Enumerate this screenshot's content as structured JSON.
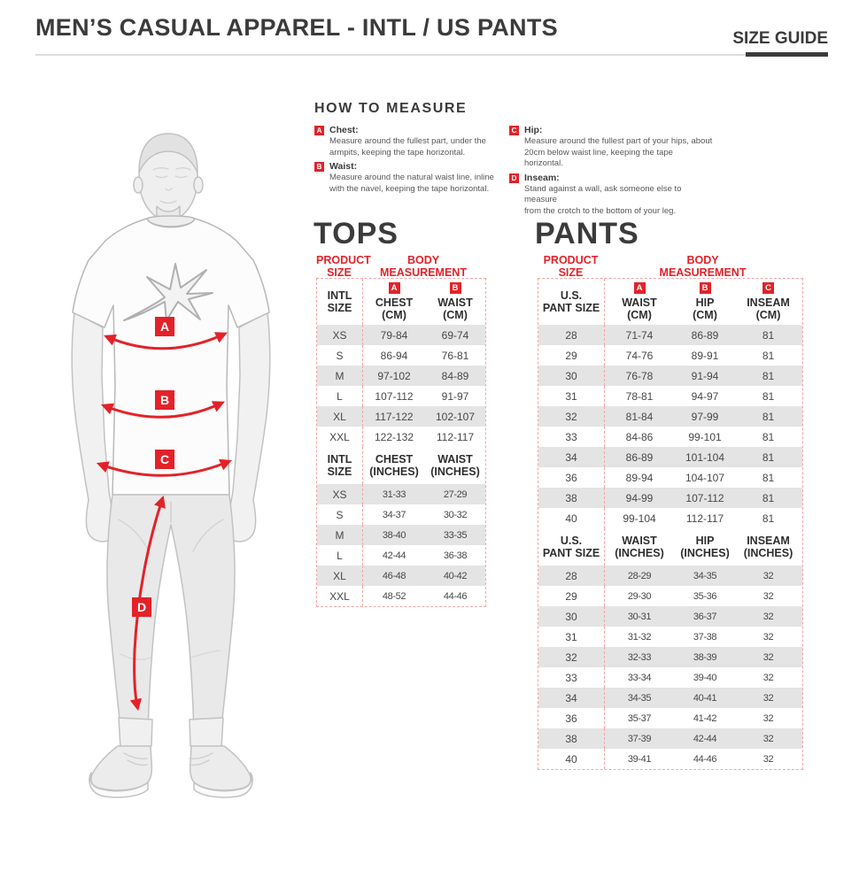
{
  "page": {
    "title": "MEN’S CASUAL APPAREL - INTL / US PANTS",
    "size_guide": "SIZE GUIDE"
  },
  "colors": {
    "accent_red": "#e32228",
    "table_border_dash": "#f0a7a4",
    "row_alt": "#e4e4e4",
    "heading_text": "#3b3b3b"
  },
  "how_to_measure": {
    "title": "HOW TO MEASURE",
    "items": [
      {
        "key": "A",
        "label": "Chest:",
        "text": "Measure around the fullest part, under the\narmpits, keeping the tape horizontal."
      },
      {
        "key": "B",
        "label": "Waist:",
        "text": "Measure around the natural waist line, inline\nwith the navel, keeping the tape horizontal."
      },
      {
        "key": "C",
        "label": "Hip:",
        "text": "Measure around the fullest part of your hips, about\n20cm below waist line, keeping the tape horizontal."
      },
      {
        "key": "D",
        "label": "Inseam:",
        "text": "Stand against a wall, ask someone else to measure\nfrom the crotch to the bottom of your leg."
      }
    ]
  },
  "figure": {
    "markers": [
      "A",
      "B",
      "C",
      "D"
    ]
  },
  "tops": {
    "title": "TOPS",
    "product_size_header": "PRODUCT\nSIZE",
    "body_measurement_header": "BODY\nMEASUREMENT",
    "cm": {
      "size_label": "INTL\nSIZE",
      "columns": [
        {
          "badge": "A",
          "label": "CHEST\n(CM)"
        },
        {
          "badge": "B",
          "label": "WAIST\n(CM)"
        }
      ],
      "rows": [
        {
          "size": "XS",
          "values": [
            "79-84",
            "69-74"
          ]
        },
        {
          "size": "S",
          "values": [
            "86-94",
            "76-81"
          ]
        },
        {
          "size": "M",
          "values": [
            "97-102",
            "84-89"
          ]
        },
        {
          "size": "L",
          "values": [
            "107-112",
            "91-97"
          ]
        },
        {
          "size": "XL",
          "values": [
            "117-122",
            "102-107"
          ]
        },
        {
          "size": "XXL",
          "values": [
            "122-132",
            "112-117"
          ]
        }
      ]
    },
    "inches": {
      "size_label": "INTL\nSIZE",
      "columns": [
        {
          "label": "CHEST\n(INCHES)"
        },
        {
          "label": "WAIST\n(INCHES)"
        }
      ],
      "rows": [
        {
          "size": "XS",
          "values": [
            "31-33",
            "27-29"
          ]
        },
        {
          "size": "S",
          "values": [
            "34-37",
            "30-32"
          ]
        },
        {
          "size": "M",
          "values": [
            "38-40",
            "33-35"
          ]
        },
        {
          "size": "L",
          "values": [
            "42-44",
            "36-38"
          ]
        },
        {
          "size": "XL",
          "values": [
            "46-48",
            "40-42"
          ]
        },
        {
          "size": "XXL",
          "values": [
            "48-52",
            "44-46"
          ]
        }
      ]
    }
  },
  "pants": {
    "title": "PANTS",
    "product_size_header": "PRODUCT\nSIZE",
    "body_measurement_header": "BODY\nMEASUREMENT",
    "cm": {
      "size_label": "U.S.\nPANT SIZE",
      "columns": [
        {
          "badge": "A",
          "label": "WAIST\n(CM)"
        },
        {
          "badge": "B",
          "label": "HIP\n(CM)"
        },
        {
          "badge": "C",
          "label": "INSEAM\n(CM)"
        }
      ],
      "rows": [
        {
          "size": "28",
          "values": [
            "71-74",
            "86-89",
            "81"
          ]
        },
        {
          "size": "29",
          "values": [
            "74-76",
            "89-91",
            "81"
          ]
        },
        {
          "size": "30",
          "values": [
            "76-78",
            "91-94",
            "81"
          ]
        },
        {
          "size": "31",
          "values": [
            "78-81",
            "94-97",
            "81"
          ]
        },
        {
          "size": "32",
          "values": [
            "81-84",
            "97-99",
            "81"
          ]
        },
        {
          "size": "33",
          "values": [
            "84-86",
            "99-101",
            "81"
          ]
        },
        {
          "size": "34",
          "values": [
            "86-89",
            "101-104",
            "81"
          ]
        },
        {
          "size": "36",
          "values": [
            "89-94",
            "104-107",
            "81"
          ]
        },
        {
          "size": "38",
          "values": [
            "94-99",
            "107-112",
            "81"
          ]
        },
        {
          "size": "40",
          "values": [
            "99-104",
            "112-117",
            "81"
          ]
        }
      ]
    },
    "inches": {
      "size_label": "U.S.\nPANT SIZE",
      "columns": [
        {
          "label": "WAIST\n(INCHES)"
        },
        {
          "label": "HIP\n(INCHES)"
        },
        {
          "label": "INSEAM\n(INCHES)"
        }
      ],
      "rows": [
        {
          "size": "28",
          "values": [
            "28-29",
            "34-35",
            "32"
          ]
        },
        {
          "size": "29",
          "values": [
            "29-30",
            "35-36",
            "32"
          ]
        },
        {
          "size": "30",
          "values": [
            "30-31",
            "36-37",
            "32"
          ]
        },
        {
          "size": "31",
          "values": [
            "31-32",
            "37-38",
            "32"
          ]
        },
        {
          "size": "32",
          "values": [
            "32-33",
            "38-39",
            "32"
          ]
        },
        {
          "size": "33",
          "values": [
            "33-34",
            "39-40",
            "32"
          ]
        },
        {
          "size": "34",
          "values": [
            "34-35",
            "40-41",
            "32"
          ]
        },
        {
          "size": "36",
          "values": [
            "35-37",
            "41-42",
            "32"
          ]
        },
        {
          "size": "38",
          "values": [
            "37-39",
            "42-44",
            "32"
          ]
        },
        {
          "size": "40",
          "values": [
            "39-41",
            "44-46",
            "32"
          ]
        }
      ]
    }
  }
}
